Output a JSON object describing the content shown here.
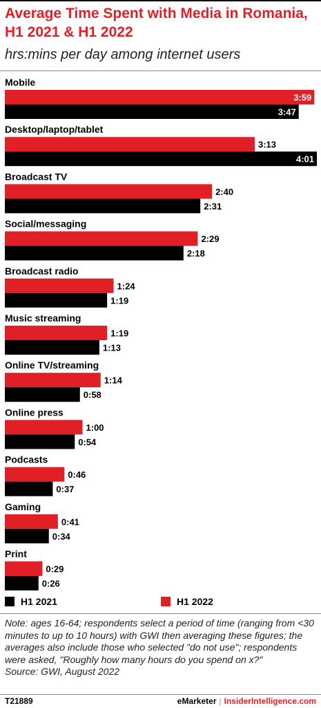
{
  "header": {
    "title": "Average Time Spent with Media in Romania, H1 2021 & H1 2022",
    "subtitle": "hrs:mins per day among internet users"
  },
  "legend": {
    "series_2021": "H1 2021",
    "series_2022": "H1 2022"
  },
  "colors": {
    "h1_2021": "#000000",
    "h1_2022": "#e01f26"
  },
  "note": "Note: ages 16-64; respondents select a period of time (ranging from <30 minutes to up to 10 hours) with GWI then averaging these figures; the averages also include those who selected \"do not use\"; respondents were asked, \"Roughly how many hours do you spend on x?\"",
  "source": "Source: GWI, August 2022",
  "footer": {
    "id": "T21889",
    "brand_1": "eMarketer",
    "separator": "|",
    "brand_2": "InsiderIntelligence.com"
  },
  "chart_data": {
    "type": "bar",
    "orientation": "horizontal",
    "unit": "hrs:mins",
    "xlim": [
      0,
      241
    ],
    "categories": [
      "Mobile",
      "Desktop/laptop/tablet",
      "Broadcast TV",
      "Social/messaging",
      "Broadcast radio",
      "Music streaming",
      "Online TV/streaming",
      "Online press",
      "Podcasts",
      "Gaming",
      "Print"
    ],
    "series": [
      {
        "name": "H1 2022",
        "color": "#e01f26",
        "values": [
          239,
          193,
          160,
          149,
          84,
          79,
          74,
          60,
          46,
          41,
          29
        ],
        "labels": [
          "3:59",
          "3:13",
          "2:40",
          "2:29",
          "1:24",
          "1:19",
          "1:14",
          "1:00",
          "0:46",
          "0:41",
          "0:29"
        ]
      },
      {
        "name": "H1 2021",
        "color": "#000000",
        "values": [
          227,
          241,
          151,
          138,
          79,
          73,
          58,
          54,
          37,
          34,
          26
        ],
        "labels": [
          "3:47",
          "4:01",
          "2:31",
          "2:18",
          "1:19",
          "1:13",
          "0:58",
          "0:54",
          "0:37",
          "0:34",
          "0:26"
        ]
      }
    ]
  }
}
